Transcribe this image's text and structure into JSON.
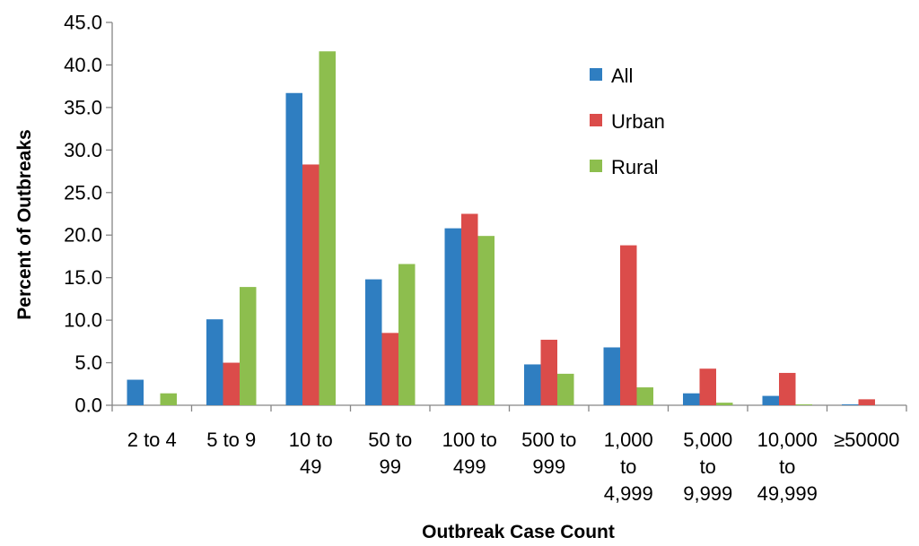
{
  "chart_data": {
    "type": "bar",
    "title": "",
    "xlabel": "Outbreak Case Count",
    "ylabel": "Percent of Outbreaks",
    "ylim": [
      0,
      45
    ],
    "ytick_step": 5,
    "grid": false,
    "legend_position": "top-right",
    "categories": [
      [
        "2 to 4"
      ],
      [
        "5 to 9"
      ],
      [
        "10 to",
        "49"
      ],
      [
        "50 to",
        "99"
      ],
      [
        "100 to",
        "499"
      ],
      [
        "500 to",
        "999"
      ],
      [
        "1,000",
        "to",
        "4,999"
      ],
      [
        "5,000",
        "to",
        "9,999"
      ],
      [
        "10,000",
        "to",
        "49,999"
      ],
      [
        "≥50000"
      ]
    ],
    "series": [
      {
        "name": "All",
        "color": "#2F7EC1",
        "values": [
          3.0,
          10.1,
          36.7,
          14.8,
          20.8,
          4.8,
          6.8,
          1.4,
          1.1,
          0.1
        ]
      },
      {
        "name": "Urban",
        "color": "#DB4C4A",
        "values": [
          0.0,
          5.0,
          28.3,
          8.5,
          22.5,
          7.7,
          18.8,
          4.3,
          3.8,
          0.7
        ]
      },
      {
        "name": "Rural",
        "color": "#8DBE4E",
        "values": [
          1.4,
          13.9,
          41.6,
          16.6,
          19.9,
          3.7,
          2.1,
          0.3,
          0.1,
          0.0
        ]
      }
    ]
  }
}
